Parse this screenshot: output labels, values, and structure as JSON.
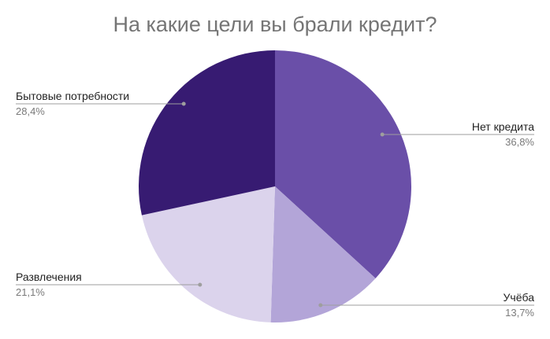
{
  "chart_data": {
    "type": "pie",
    "title": "На какие цели вы брали кредит?",
    "slices": [
      {
        "label": "Нет кредита",
        "value": 36.8,
        "value_label": "36,8%",
        "color": "#6a4fa8"
      },
      {
        "label": "Учёба",
        "value": 13.7,
        "value_label": "13,7%",
        "color": "#b3a5d8"
      },
      {
        "label": "Развлечения",
        "value": 21.1,
        "value_label": "21,1%",
        "color": "#dbd3ec"
      },
      {
        "label": "Бытовые потребности",
        "value": 28.4,
        "value_label": "28,4%",
        "color": "#371b72"
      }
    ],
    "start_angle_deg": 0,
    "direction": "clockwise",
    "legend": "none",
    "label_style": "callout-lines"
  }
}
